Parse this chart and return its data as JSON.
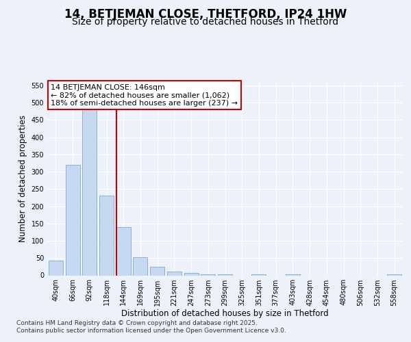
{
  "title": "14, BETJEMAN CLOSE, THETFORD, IP24 1HW",
  "subtitle": "Size of property relative to detached houses in Thetford",
  "xlabel": "Distribution of detached houses by size in Thetford",
  "ylabel": "Number of detached properties",
  "categories": [
    "40sqm",
    "66sqm",
    "92sqm",
    "118sqm",
    "144sqm",
    "169sqm",
    "195sqm",
    "221sqm",
    "247sqm",
    "273sqm",
    "299sqm",
    "325sqm",
    "351sqm",
    "377sqm",
    "403sqm",
    "428sqm",
    "454sqm",
    "480sqm",
    "506sqm",
    "532sqm",
    "558sqm"
  ],
  "values": [
    42,
    320,
    490,
    230,
    140,
    52,
    25,
    10,
    7,
    2,
    2,
    0,
    2,
    0,
    2,
    0,
    0,
    0,
    0,
    0,
    2
  ],
  "bar_color": "#c5d8ef",
  "bar_edge_color": "#7aacd4",
  "red_line_index": 4,
  "annotation_line1": "14 BETJEMAN CLOSE: 146sqm",
  "annotation_line2": "← 82% of detached houses are smaller (1,062)",
  "annotation_line3": "18% of semi-detached houses are larger (237) →",
  "footer_text": "Contains HM Land Registry data © Crown copyright and database right 2025.\nContains public sector information licensed under the Open Government Licence v3.0.",
  "ylim": [
    0,
    560
  ],
  "yticks": [
    0,
    50,
    100,
    150,
    200,
    250,
    300,
    350,
    400,
    450,
    500,
    550
  ],
  "bg_color": "#edf2fa",
  "grid_color": "#ffffff",
  "title_fontsize": 12,
  "subtitle_fontsize": 10,
  "tick_fontsize": 7,
  "ylabel_fontsize": 8.5,
  "xlabel_fontsize": 8.5,
  "footer_fontsize": 6.5,
  "annotation_fontsize": 8
}
